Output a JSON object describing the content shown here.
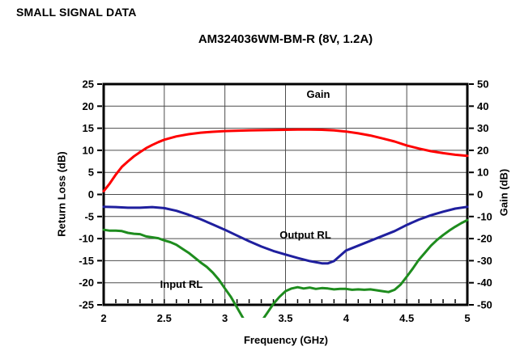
{
  "header": {
    "title": "SMALL SIGNAL DATA"
  },
  "chart": {
    "title": "AM324036WM-BM-R (8V, 1.2A)",
    "x_label": "Frequency (GHz)",
    "y_left_label": "Return Loss (dB)",
    "y_right_label": "Gain (dB)",
    "annotations": {
      "gain": "Gain",
      "output_rl": "Output RL",
      "input_rl": "Input RL"
    }
  },
  "chart_data": {
    "type": "line",
    "title": "AM324036WM-BM-R (8V, 1.2A)",
    "xlabel": "Frequency (GHz)",
    "ylabel_left": "Return Loss (dB)",
    "ylabel_right": "Gain (dB)",
    "grid": true,
    "x_range": [
      2,
      5
    ],
    "x_major_tick": 0.5,
    "x_minor_tick": 0.1,
    "x_ticks": [
      2,
      2.5,
      3,
      3.5,
      4,
      4.5,
      5
    ],
    "x_tick_labels": [
      "2",
      "2.5",
      "3",
      "3.5",
      "4",
      "4.5",
      "5"
    ],
    "y_left_range": [
      -25,
      25
    ],
    "y_left_ticks": [
      25,
      20,
      15,
      10,
      5,
      0,
      -5,
      -10,
      -15,
      -20,
      -25
    ],
    "y_right_range": [
      -50,
      50
    ],
    "y_right_ticks": [
      50,
      40,
      30,
      20,
      10,
      0,
      -10,
      -20,
      -30,
      -40,
      -50
    ],
    "gridline_color": "#4d4d4d",
    "axis_color": "#000000",
    "series": [
      {
        "name": "Gain",
        "axis": "right",
        "color": "#ff0000",
        "points": [
          [
            2.0,
            1.5
          ],
          [
            2.05,
            5
          ],
          [
            2.1,
            9
          ],
          [
            2.15,
            12.5
          ],
          [
            2.2,
            15
          ],
          [
            2.25,
            17.3
          ],
          [
            2.3,
            19.2
          ],
          [
            2.35,
            21
          ],
          [
            2.4,
            22.4
          ],
          [
            2.45,
            23.7
          ],
          [
            2.5,
            24.8
          ],
          [
            2.6,
            26.3
          ],
          [
            2.7,
            27.3
          ],
          [
            2.8,
            28
          ],
          [
            2.9,
            28.4
          ],
          [
            3.0,
            28.7
          ],
          [
            3.2,
            29
          ],
          [
            3.4,
            29.2
          ],
          [
            3.5,
            29.3
          ],
          [
            3.6,
            29.4
          ],
          [
            3.7,
            29.4
          ],
          [
            3.8,
            29.3
          ],
          [
            3.9,
            29
          ],
          [
            4.0,
            28.5
          ],
          [
            4.1,
            27.7
          ],
          [
            4.2,
            26.7
          ],
          [
            4.3,
            25.4
          ],
          [
            4.4,
            24
          ],
          [
            4.5,
            22.2
          ],
          [
            4.6,
            20.8
          ],
          [
            4.7,
            19.6
          ],
          [
            4.8,
            18.7
          ],
          [
            4.9,
            18
          ],
          [
            5.0,
            17.5
          ]
        ]
      },
      {
        "name": "Output RL",
        "axis": "left",
        "color": "#1f1f9e",
        "points": [
          [
            2.0,
            -2.8
          ],
          [
            2.1,
            -2.85
          ],
          [
            2.2,
            -3.0
          ],
          [
            2.3,
            -3.0
          ],
          [
            2.4,
            -2.85
          ],
          [
            2.5,
            -3.1
          ],
          [
            2.6,
            -3.7
          ],
          [
            2.7,
            -4.6
          ],
          [
            2.8,
            -5.6
          ],
          [
            2.9,
            -6.8
          ],
          [
            3.0,
            -8.0
          ],
          [
            3.1,
            -9.3
          ],
          [
            3.2,
            -10.6
          ],
          [
            3.3,
            -11.8
          ],
          [
            3.4,
            -12.8
          ],
          [
            3.5,
            -13.6
          ],
          [
            3.6,
            -14.4
          ],
          [
            3.7,
            -15.1
          ],
          [
            3.8,
            -15.6
          ],
          [
            3.85,
            -15.6
          ],
          [
            3.9,
            -15.1
          ],
          [
            4.0,
            -12.7
          ],
          [
            4.1,
            -11.6
          ],
          [
            4.2,
            -10.5
          ],
          [
            4.3,
            -9.4
          ],
          [
            4.4,
            -8.3
          ],
          [
            4.5,
            -6.9
          ],
          [
            4.6,
            -5.7
          ],
          [
            4.7,
            -4.7
          ],
          [
            4.8,
            -3.9
          ],
          [
            4.9,
            -3.2
          ],
          [
            5.0,
            -2.8
          ]
        ]
      },
      {
        "name": "Input RL",
        "axis": "left",
        "color": "#1e8c1e",
        "points": [
          [
            2.0,
            -8.0
          ],
          [
            2.05,
            -8.2
          ],
          [
            2.1,
            -8.2
          ],
          [
            2.15,
            -8.3
          ],
          [
            2.2,
            -8.7
          ],
          [
            2.25,
            -8.9
          ],
          [
            2.3,
            -9.0
          ],
          [
            2.35,
            -9.5
          ],
          [
            2.4,
            -9.7
          ],
          [
            2.45,
            -9.9
          ],
          [
            2.5,
            -10.4
          ],
          [
            2.55,
            -10.8
          ],
          [
            2.6,
            -11.4
          ],
          [
            2.65,
            -12.3
          ],
          [
            2.7,
            -13.2
          ],
          [
            2.75,
            -14.3
          ],
          [
            2.8,
            -15.4
          ],
          [
            2.85,
            -16.4
          ],
          [
            2.9,
            -17.7
          ],
          [
            2.95,
            -19.3
          ],
          [
            3.0,
            -21.3
          ],
          [
            3.05,
            -23.2
          ],
          [
            3.1,
            -25.6
          ],
          [
            3.15,
            -28
          ],
          [
            3.2,
            -29.5
          ],
          [
            3.25,
            -29.8
          ],
          [
            3.3,
            -28.8
          ],
          [
            3.35,
            -26.8
          ],
          [
            3.4,
            -24.8
          ],
          [
            3.45,
            -23.2
          ],
          [
            3.5,
            -21.9
          ],
          [
            3.55,
            -21.3
          ],
          [
            3.6,
            -21.0
          ],
          [
            3.65,
            -21.3
          ],
          [
            3.7,
            -21.1
          ],
          [
            3.75,
            -21.4
          ],
          [
            3.8,
            -21.2
          ],
          [
            3.85,
            -21.3
          ],
          [
            3.9,
            -21.5
          ],
          [
            3.95,
            -21.4
          ],
          [
            4.0,
            -21.4
          ],
          [
            4.05,
            -21.6
          ],
          [
            4.1,
            -21.5
          ],
          [
            4.15,
            -21.6
          ],
          [
            4.2,
            -21.5
          ],
          [
            4.25,
            -21.7
          ],
          [
            4.3,
            -21.9
          ],
          [
            4.35,
            -22.1
          ],
          [
            4.4,
            -21.6
          ],
          [
            4.45,
            -20.4
          ],
          [
            4.5,
            -18.6
          ],
          [
            4.55,
            -16.8
          ],
          [
            4.6,
            -14.8
          ],
          [
            4.65,
            -13.2
          ],
          [
            4.7,
            -11.6
          ],
          [
            4.75,
            -10.3
          ],
          [
            4.8,
            -9.2
          ],
          [
            4.85,
            -8.2
          ],
          [
            4.9,
            -7.3
          ],
          [
            4.95,
            -6.5
          ],
          [
            5.0,
            -5.8
          ]
        ]
      }
    ]
  }
}
